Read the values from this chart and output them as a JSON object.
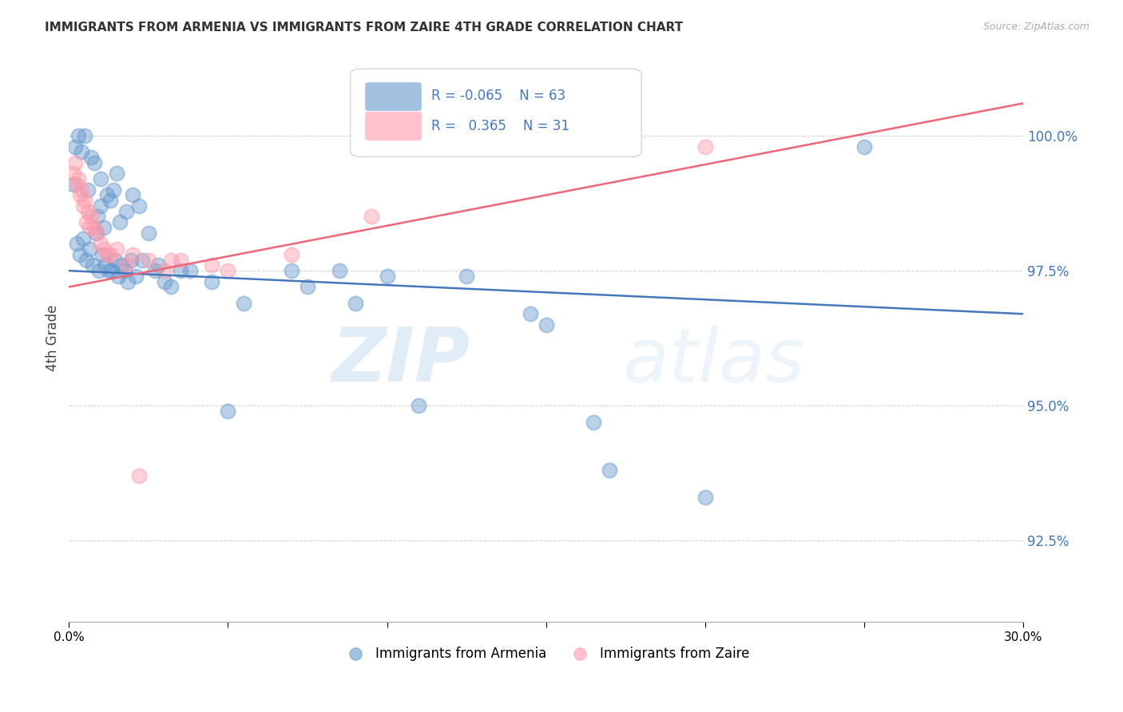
{
  "title": "IMMIGRANTS FROM ARMENIA VS IMMIGRANTS FROM ZAIRE 4TH GRADE CORRELATION CHART",
  "source": "Source: ZipAtlas.com",
  "ylabel": "4th Grade",
  "ytick_values": [
    100.0,
    97.5,
    95.0,
    92.5
  ],
  "y_min": 91.0,
  "y_max": 101.5,
  "x_min": 0.0,
  "x_max": 30.0,
  "legend_blue_r": "-0.065",
  "legend_blue_n": "63",
  "legend_pink_r": "0.365",
  "legend_pink_n": "31",
  "legend_label_blue": "Immigrants from Armenia",
  "legend_label_pink": "Immigrants from Zaire",
  "blue_color": "#6699cc",
  "pink_color": "#ff99aa",
  "blue_line_color": "#4477bb",
  "pink_line_color": "#ee6677",
  "watermark_zip": "ZIP",
  "watermark_atlas": "atlas",
  "blue_trend_y0": 97.5,
  "blue_trend_y1": 96.7,
  "pink_trend_y0": 97.2,
  "pink_trend_y1": 100.6,
  "blue_x": [
    0.3,
    0.5,
    0.4,
    0.8,
    1.0,
    0.6,
    1.2,
    1.5,
    1.0,
    0.7,
    0.9,
    1.3,
    1.8,
    2.0,
    1.6,
    2.2,
    2.5,
    1.4,
    1.1,
    0.2,
    0.15,
    0.25,
    0.35,
    0.45,
    0.55,
    0.65,
    0.75,
    0.85,
    0.95,
    1.05,
    1.15,
    1.25,
    1.35,
    1.45,
    1.55,
    1.65,
    1.75,
    1.85,
    1.95,
    2.1,
    2.3,
    2.7,
    3.0,
    3.5,
    2.8,
    3.2,
    3.8,
    4.5,
    5.5,
    7.0,
    8.5,
    10.0,
    12.5,
    15.0,
    17.0,
    14.5,
    25.0,
    7.5,
    9.0,
    11.0,
    16.5,
    20.0,
    5.0
  ],
  "blue_y": [
    100.0,
    100.0,
    99.7,
    99.5,
    99.2,
    99.0,
    98.9,
    99.3,
    98.7,
    99.6,
    98.5,
    98.8,
    98.6,
    98.9,
    98.4,
    98.7,
    98.2,
    99.0,
    98.3,
    99.8,
    99.1,
    98.0,
    97.8,
    98.1,
    97.7,
    97.9,
    97.6,
    98.2,
    97.5,
    97.8,
    97.6,
    97.5,
    97.5,
    97.7,
    97.4,
    97.6,
    97.5,
    97.3,
    97.7,
    97.4,
    97.7,
    97.5,
    97.3,
    97.5,
    97.6,
    97.2,
    97.5,
    97.3,
    96.9,
    97.5,
    97.5,
    97.4,
    97.4,
    96.5,
    93.8,
    96.7,
    99.8,
    97.2,
    96.9,
    95.0,
    94.7,
    93.3,
    94.9
  ],
  "pink_x": [
    0.2,
    0.3,
    0.4,
    0.5,
    0.6,
    0.7,
    0.8,
    0.9,
    1.0,
    1.1,
    1.2,
    1.5,
    1.8,
    2.0,
    2.5,
    3.0,
    3.5,
    4.5,
    7.0,
    9.5,
    5.0,
    0.15,
    0.25,
    0.35,
    0.45,
    0.55,
    0.65,
    1.3,
    3.2,
    20.0,
    2.2
  ],
  "pink_y": [
    99.5,
    99.2,
    99.0,
    98.8,
    98.6,
    98.5,
    98.3,
    98.2,
    98.0,
    97.9,
    97.8,
    97.9,
    97.6,
    97.8,
    97.7,
    97.5,
    97.7,
    97.6,
    97.8,
    98.5,
    97.5,
    99.3,
    99.1,
    98.9,
    98.7,
    98.4,
    98.3,
    97.8,
    97.7,
    99.8,
    93.7
  ]
}
